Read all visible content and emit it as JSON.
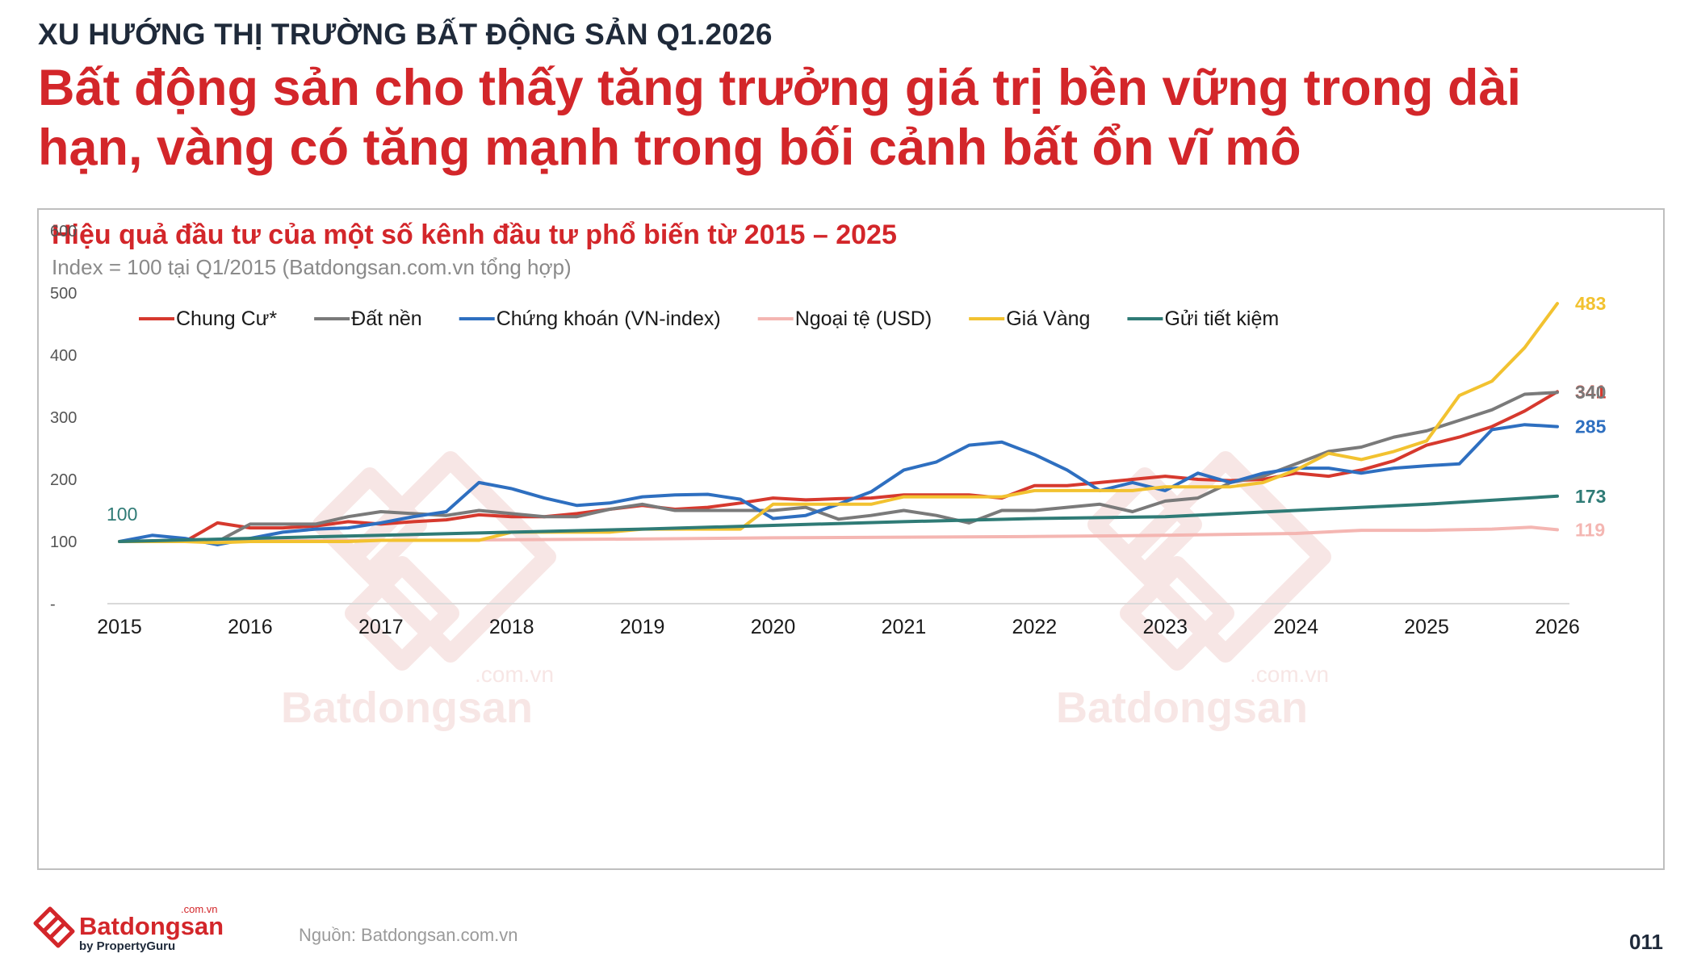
{
  "header": {
    "kicker": "XU HƯỚNG THỊ TRƯỜNG BẤT ĐỘNG SẢN Q1.2026",
    "headline": "Bất động sản cho thấy tăng trưởng giá trị bền vững trong dài hạn, vàng có tăng mạnh trong bối cảnh bất ổn vĩ mô"
  },
  "chart_data": {
    "type": "line",
    "title": "Hiệu quả đầu tư của một số kênh đầu tư phổ biến từ 2015 – 2025",
    "subtitle": "Index = 100 tại Q1/2015 (Batdongsan.com.vn tổng hợp)",
    "xlabel": "",
    "ylabel": "",
    "x_ticks": [
      "2015",
      "2016",
      "2017",
      "2018",
      "2019",
      "2020",
      "2021",
      "2022",
      "2023",
      "2024",
      "2025",
      "2026"
    ],
    "y_ticks": [
      "-",
      "100",
      "200",
      "300",
      "400",
      "500",
      "600"
    ],
    "ylim": [
      0,
      600
    ],
    "xlim": [
      2015,
      2026
    ],
    "grid": false,
    "legend_position": "top",
    "start_label": "100",
    "series": [
      {
        "name": "Chung Cư*",
        "color": "#d6392e",
        "end_label": "341",
        "x": [
          2015,
          2015.25,
          2015.5,
          2015.75,
          2016,
          2016.25,
          2016.5,
          2016.75,
          2017,
          2017.25,
          2017.5,
          2017.75,
          2018,
          2018.25,
          2018.5,
          2018.75,
          2019,
          2019.25,
          2019.5,
          2019.75,
          2020,
          2020.25,
          2020.5,
          2020.75,
          2021,
          2021.25,
          2021.5,
          2021.75,
          2022,
          2022.25,
          2022.5,
          2022.75,
          2023,
          2023.25,
          2023.5,
          2023.75,
          2024,
          2024.25,
          2024.5,
          2024.75,
          2025,
          2025.25,
          2025.5,
          2025.75,
          2026
        ],
        "y": [
          100,
          100,
          100,
          130,
          122,
          122,
          125,
          132,
          128,
          132,
          135,
          143,
          140,
          140,
          145,
          152,
          158,
          152,
          155,
          162,
          170,
          167,
          169,
          170,
          175,
          175,
          175,
          170,
          190,
          190,
          195,
          200,
          205,
          200,
          198,
          200,
          210,
          205,
          215,
          230,
          255,
          268,
          285,
          310,
          341
        ]
      },
      {
        "name": "Đất nền",
        "color": "#7a7a7a",
        "end_label": "340",
        "x": [
          2015,
          2015.25,
          2015.5,
          2015.75,
          2016,
          2016.25,
          2016.5,
          2016.75,
          2017,
          2017.25,
          2017.5,
          2017.75,
          2018,
          2018.25,
          2018.5,
          2018.75,
          2019,
          2019.25,
          2019.5,
          2019.75,
          2020,
          2020.25,
          2020.5,
          2020.75,
          2021,
          2021.25,
          2021.5,
          2021.75,
          2022,
          2022.25,
          2022.5,
          2022.75,
          2023,
          2023.25,
          2023.5,
          2023.75,
          2024,
          2024.25,
          2024.5,
          2024.75,
          2025,
          2025.25,
          2025.5,
          2025.75,
          2026
        ],
        "y": [
          100,
          100,
          100,
          100,
          128,
          128,
          128,
          140,
          148,
          145,
          142,
          150,
          145,
          140,
          140,
          152,
          160,
          150,
          150,
          150,
          150,
          155,
          136,
          142,
          150,
          142,
          130,
          150,
          150,
          155,
          160,
          148,
          165,
          170,
          195,
          205,
          225,
          245,
          252,
          268,
          278,
          295,
          312,
          337,
          340
        ]
      },
      {
        "name": "Chứng khoán (VN-index)",
        "color": "#2e6fc0",
        "end_label": "285",
        "x": [
          2015,
          2015.25,
          2015.5,
          2015.75,
          2016,
          2016.25,
          2016.5,
          2016.75,
          2017,
          2017.25,
          2017.5,
          2017.75,
          2018,
          2018.25,
          2018.5,
          2018.75,
          2019,
          2019.25,
          2019.5,
          2019.75,
          2020,
          2020.25,
          2020.5,
          2020.75,
          2021,
          2021.25,
          2021.5,
          2021.75,
          2022,
          2022.25,
          2022.5,
          2022.75,
          2023,
          2023.25,
          2023.5,
          2023.75,
          2024,
          2024.25,
          2024.5,
          2024.75,
          2025,
          2025.25,
          2025.5,
          2025.75,
          2026
        ],
        "y": [
          100,
          110,
          105,
          95,
          105,
          115,
          120,
          122,
          130,
          140,
          148,
          195,
          185,
          170,
          158,
          162,
          172,
          175,
          176,
          168,
          137,
          142,
          160,
          180,
          215,
          228,
          255,
          260,
          240,
          215,
          182,
          195,
          182,
          210,
          195,
          210,
          218,
          218,
          210,
          218,
          222,
          225,
          280,
          288,
          285
        ]
      },
      {
        "name": "Ngoại tệ (USD)",
        "color": "#f4b6b2",
        "end_label": "119",
        "x": [
          2015,
          2016,
          2017,
          2018,
          2019,
          2020,
          2021,
          2022,
          2023,
          2024,
          2024.5,
          2025,
          2025.5,
          2025.8,
          2026
        ],
        "y": [
          100,
          101,
          102,
          103,
          104,
          106,
          107,
          108,
          110,
          113,
          118,
          118,
          120,
          123,
          119
        ]
      },
      {
        "name": "Giá Vàng",
        "color": "#f2c230",
        "end_label": "483",
        "x": [
          2015,
          2015.25,
          2015.5,
          2015.75,
          2016,
          2016.25,
          2016.5,
          2016.75,
          2017,
          2017.25,
          2017.5,
          2017.75,
          2018,
          2018.25,
          2018.5,
          2018.75,
          2019,
          2019.25,
          2019.5,
          2019.75,
          2020,
          2020.25,
          2020.5,
          2020.75,
          2021,
          2021.25,
          2021.5,
          2021.75,
          2022,
          2022.25,
          2022.5,
          2022.75,
          2023,
          2023.25,
          2023.5,
          2023.75,
          2024,
          2024.25,
          2024.5,
          2024.75,
          2025,
          2025.25,
          2025.5,
          2025.75,
          2026
        ],
        "y": [
          100,
          100,
          100,
          98,
          100,
          100,
          100,
          100,
          102,
          102,
          102,
          102,
          115,
          115,
          115,
          115,
          120,
          120,
          120,
          120,
          160,
          160,
          160,
          160,
          172,
          172,
          172,
          172,
          182,
          182,
          182,
          182,
          188,
          188,
          188,
          195,
          215,
          242,
          232,
          245,
          262,
          335,
          358,
          412,
          483
        ]
      },
      {
        "name": "Gửi tiết kiệm",
        "color": "#2f7b76",
        "end_label": "173",
        "x": [
          2015,
          2016,
          2017,
          2018,
          2019,
          2020,
          2021,
          2022,
          2023,
          2024,
          2025,
          2026
        ],
        "y": [
          100,
          105,
          110,
          115,
          120,
          126,
          132,
          137,
          140,
          150,
          160,
          173
        ]
      }
    ]
  },
  "watermark_text": "Batdongsan",
  "watermark_domain": ".com.vn",
  "footer": {
    "source": "Nguồn: Batdongsan.com.vn",
    "page_number": "011",
    "logo": {
      "name": "Batdongsan",
      "domain": ".com.vn",
      "tagline": "by PropertyGuru"
    }
  }
}
